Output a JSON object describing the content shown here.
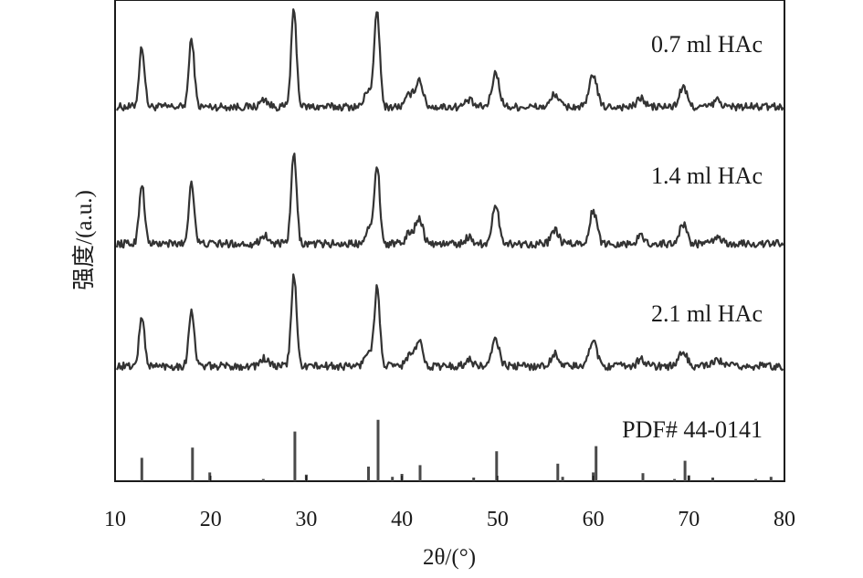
{
  "chart_data": {
    "type": "line",
    "xlabel": "2θ/(°)",
    "ylabel": "强度/(a.u.)",
    "xlim": [
      10,
      80
    ],
    "x_ticks": [
      10,
      20,
      30,
      40,
      50,
      60,
      70,
      80
    ],
    "grid": false,
    "y_ticks_shown": false,
    "series": [
      {
        "name": "0.7 ml HAc",
        "baseline": 0.0,
        "peaks": [
          [
            12.8,
            0.55
          ],
          [
            18.0,
            0.62
          ],
          [
            25.6,
            0.07
          ],
          [
            28.7,
            0.88
          ],
          [
            36.5,
            0.16
          ],
          [
            37.4,
            0.87
          ],
          [
            40.8,
            0.11
          ],
          [
            41.8,
            0.25
          ],
          [
            47.0,
            0.06
          ],
          [
            49.8,
            0.31
          ],
          [
            56.0,
            0.12
          ],
          [
            60.0,
            0.3
          ],
          [
            65.0,
            0.08
          ],
          [
            69.4,
            0.18
          ],
          [
            73.0,
            0.06
          ]
        ]
      },
      {
        "name": "1.4 ml HAc",
        "baseline": 0.0,
        "peaks": [
          [
            12.8,
            0.55
          ],
          [
            18.0,
            0.57
          ],
          [
            25.6,
            0.08
          ],
          [
            28.7,
            0.82
          ],
          [
            36.5,
            0.14
          ],
          [
            37.4,
            0.72
          ],
          [
            40.8,
            0.1
          ],
          [
            41.8,
            0.24
          ],
          [
            47.0,
            0.06
          ],
          [
            49.8,
            0.33
          ],
          [
            56.0,
            0.12
          ],
          [
            60.0,
            0.3
          ],
          [
            65.0,
            0.07
          ],
          [
            69.4,
            0.18
          ],
          [
            73.0,
            0.06
          ]
        ]
      },
      {
        "name": "2.1 ml HAc",
        "baseline": 0.0,
        "peaks": [
          [
            12.8,
            0.45
          ],
          [
            18.0,
            0.52
          ],
          [
            25.6,
            0.07
          ],
          [
            28.7,
            0.83
          ],
          [
            36.5,
            0.14
          ],
          [
            37.4,
            0.71
          ],
          [
            40.8,
            0.1
          ],
          [
            41.8,
            0.22
          ],
          [
            47.0,
            0.06
          ],
          [
            49.8,
            0.24
          ],
          [
            56.0,
            0.12
          ],
          [
            60.0,
            0.25
          ],
          [
            65.0,
            0.07
          ],
          [
            69.4,
            0.14
          ],
          [
            73.0,
            0.06
          ]
        ]
      }
    ],
    "reference": {
      "name": "PDF# 44-0141",
      "type": "stick",
      "lines": [
        [
          12.8,
          0.32
        ],
        [
          18.1,
          0.46
        ],
        [
          19.9,
          0.12
        ],
        [
          25.5,
          0.03
        ],
        [
          28.8,
          0.68
        ],
        [
          30.0,
          0.09
        ],
        [
          36.5,
          0.2
        ],
        [
          37.5,
          0.84
        ],
        [
          39.0,
          0.06
        ],
        [
          40.0,
          0.1
        ],
        [
          41.9,
          0.22
        ],
        [
          47.5,
          0.05
        ],
        [
          49.9,
          0.41
        ],
        [
          56.3,
          0.24
        ],
        [
          56.8,
          0.06
        ],
        [
          60.0,
          0.12
        ],
        [
          60.3,
          0.48
        ],
        [
          65.2,
          0.11
        ],
        [
          68.5,
          0.03
        ],
        [
          69.6,
          0.28
        ],
        [
          70.0,
          0.08
        ],
        [
          72.5,
          0.05
        ],
        [
          77.0,
          0.03
        ],
        [
          78.6,
          0.06
        ]
      ]
    }
  }
}
